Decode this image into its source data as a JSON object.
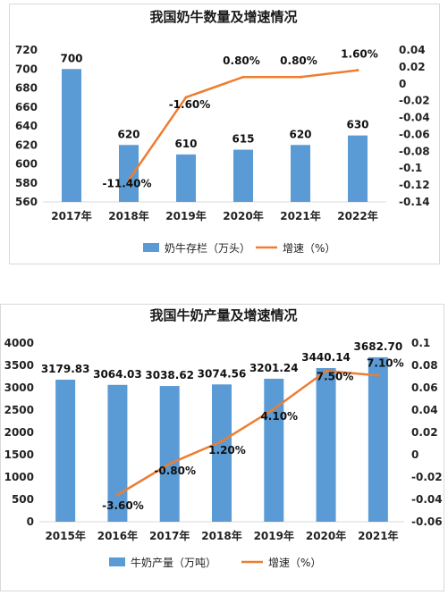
{
  "colors": {
    "bar": "#5b9bd5",
    "line": "#ed7d31",
    "grid": "#d9d9d9",
    "text": "#222222"
  },
  "chart_data": [
    {
      "type": "bar",
      "title": "我国奶牛数量及增速情况",
      "categories": [
        "2017年",
        "2018年",
        "2019年",
        "2020年",
        "2021年",
        "2022年"
      ],
      "series": [
        {
          "name": "奶牛存栏（万头）",
          "type": "bar",
          "axis": "left",
          "values": [
            700,
            620,
            610,
            615,
            620,
            630
          ],
          "labels": [
            "700",
            "620",
            "610",
            "615",
            "620",
            "630"
          ]
        },
        {
          "name": "增速（%）",
          "type": "line",
          "axis": "right",
          "values": [
            null,
            -0.114,
            -0.016,
            0.008,
            0.008,
            0.016
          ],
          "labels": [
            "",
            "-11.40%",
            "-1.60%",
            "0.80%",
            "0.80%",
            "1.60%"
          ]
        }
      ],
      "y_left": {
        "ylim": [
          560,
          720
        ],
        "ticks": [
          "560",
          "580",
          "600",
          "620",
          "640",
          "660",
          "680",
          "700",
          "720"
        ]
      },
      "y_right": {
        "ylim": [
          -0.14,
          0.04
        ],
        "ticks": [
          "-0.14",
          "-0.12",
          "-0.1",
          "-0.08",
          "-0.06",
          "-0.04",
          "-0.02",
          "0",
          "0.02",
          "0.04"
        ]
      },
      "grid": false,
      "legend": "bottom"
    },
    {
      "type": "bar",
      "title": "我国牛奶产量及增速情况",
      "categories": [
        "2015年",
        "2016年",
        "2017年",
        "2018年",
        "2019年",
        "2020年",
        "2021年"
      ],
      "series": [
        {
          "name": "牛奶产量（万吨）",
          "type": "bar",
          "axis": "left",
          "values": [
            3179.83,
            3064.03,
            3038.62,
            3074.56,
            3201.24,
            3440.14,
            3682.7
          ],
          "labels": [
            "3179.83",
            "3064.03",
            "3038.62",
            "3074.56",
            "3201.24",
            "3440.14",
            "3682.70"
          ]
        },
        {
          "name": "增速（%）",
          "type": "line",
          "axis": "right",
          "values": [
            null,
            -0.036,
            -0.008,
            0.012,
            0.041,
            0.075,
            0.071
          ],
          "labels": [
            "",
            "-3.60%",
            "-0.80%",
            "1.20%",
            "4.10%",
            "7.50%",
            "7.10%"
          ]
        }
      ],
      "y_left": {
        "ylim": [
          0,
          4000
        ],
        "ticks": [
          "0",
          "500",
          "1000",
          "1500",
          "2000",
          "2500",
          "3000",
          "3500",
          "4000"
        ]
      },
      "y_right": {
        "ylim": [
          -0.06,
          0.1
        ],
        "ticks": [
          "-0.06",
          "-0.04",
          "-0.02",
          "0",
          "0.02",
          "0.04",
          "0.06",
          "0.08",
          "0.1"
        ]
      },
      "grid": false,
      "legend": "bottom"
    }
  ]
}
